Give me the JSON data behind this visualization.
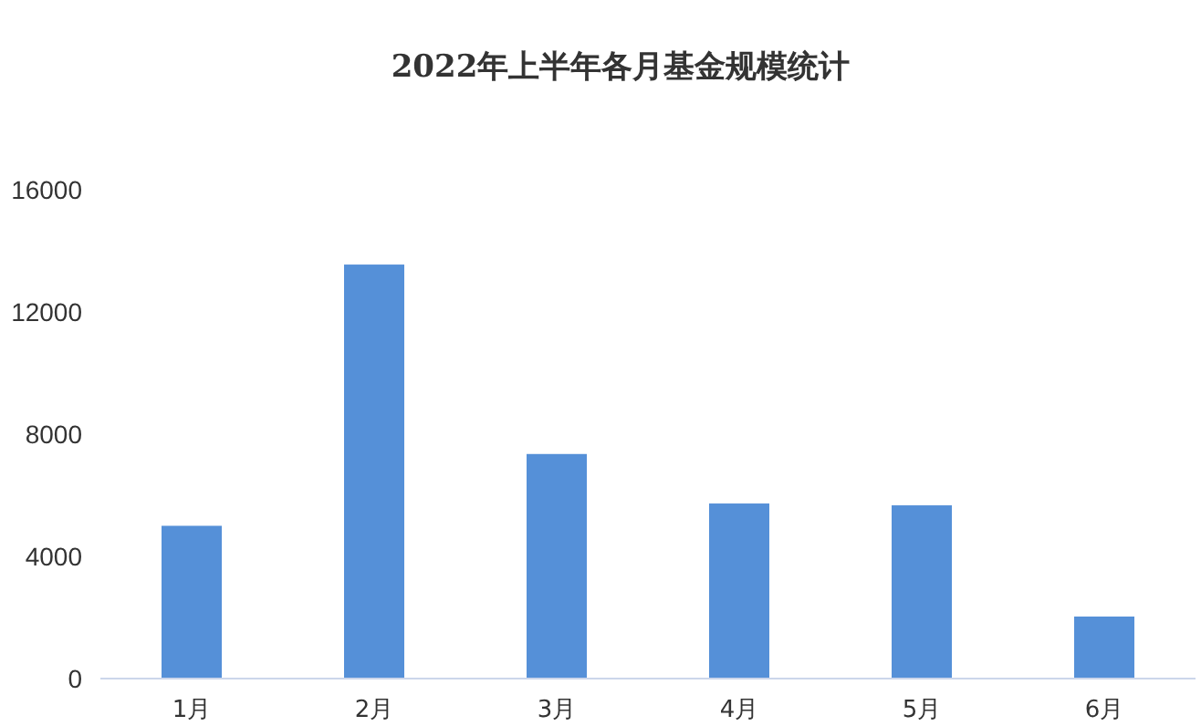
{
  "chart_data": {
    "type": "bar",
    "title": "2022年上半年各月基金规模统计",
    "categories": [
      "1月",
      "2月",
      "3月",
      "4月",
      "5月",
      "6月"
    ],
    "values": [
      5000,
      13550,
      7350,
      5730,
      5670,
      2030
    ],
    "color": "#5590d8",
    "ylim": [
      0,
      16000
    ],
    "yticks": [
      0,
      4000,
      8000,
      12000,
      16000
    ],
    "grid": false
  }
}
